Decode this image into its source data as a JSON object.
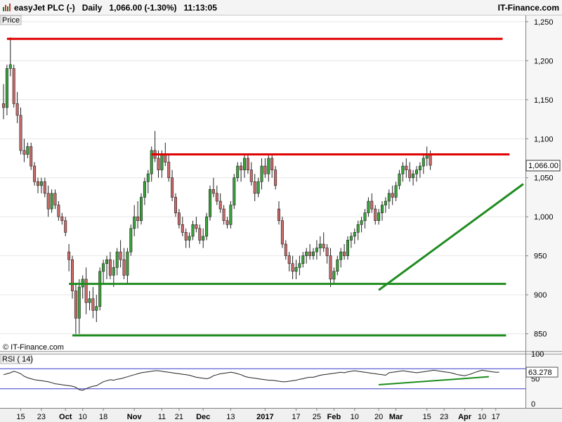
{
  "header": {
    "instrument": "easyJet PLC (-)",
    "interval": "Daily",
    "quote": "1,066.00 (-1.30%)",
    "time": "11:13:05",
    "brand": "IT-Finance.com"
  },
  "price_panel": {
    "label": "Price",
    "watermark": "© IT-Finance.com",
    "last_price_label": "1,066.00",
    "colors": {
      "up": "#3aa33a",
      "down": "#c96a6a",
      "resistance": "#e00000",
      "support": "#1e8c1e",
      "badge": "#ffffff"
    }
  },
  "rsi_panel": {
    "label": "RSI ( 14)",
    "value_label": "63.278",
    "level_labels": [
      "100",
      "50",
      "0"
    ]
  },
  "chart_data": {
    "type": "candlestick",
    "title": "easyJet PLC (-)",
    "interval": "Daily",
    "y_axis": {
      "ticks": [
        850,
        900,
        950,
        1000,
        1050,
        1100,
        1150,
        1200,
        1250
      ],
      "tick_labels": [
        "850",
        "900",
        "950",
        "1,000",
        "1,050",
        "1,100",
        "1,150",
        "1,200",
        "1,250"
      ],
      "ylim": [
        828,
        1258
      ]
    },
    "x_axis": {
      "tick_labels": [
        {
          "label": "15",
          "bar": 5
        },
        {
          "label": "23",
          "bar": 11
        },
        {
          "label": "Oct",
          "bar": 18
        },
        {
          "label": "10",
          "bar": 23
        },
        {
          "label": "18",
          "bar": 29
        },
        {
          "label": "Nov",
          "bar": 38
        },
        {
          "label": "11",
          "bar": 46
        },
        {
          "label": "21",
          "bar": 51
        },
        {
          "label": "Dec",
          "bar": 58
        },
        {
          "label": "13",
          "bar": 66
        },
        {
          "label": "2017",
          "bar": 76
        },
        {
          "label": "17",
          "bar": 85
        },
        {
          "label": "25",
          "bar": 91
        },
        {
          "label": "Feb",
          "bar": 96
        },
        {
          "label": "10",
          "bar": 102
        },
        {
          "label": "20",
          "bar": 109
        },
        {
          "label": "Mar",
          "bar": 114
        },
        {
          "label": "15",
          "bar": 123
        },
        {
          "label": "23",
          "bar": 128
        },
        {
          "label": "Apr",
          "bar": 134
        },
        {
          "label": "10",
          "bar": 139
        },
        {
          "label": "17",
          "bar": 143
        }
      ]
    },
    "ohlc": [
      [
        1145,
        1170,
        1125,
        1140
      ],
      [
        1140,
        1195,
        1130,
        1190
      ],
      [
        1190,
        1230,
        1180,
        1195
      ],
      [
        1190,
        1195,
        1140,
        1145
      ],
      [
        1145,
        1160,
        1120,
        1130
      ],
      [
        1130,
        1140,
        1080,
        1085
      ],
      [
        1085,
        1100,
        1070,
        1080
      ],
      [
        1080,
        1095,
        1075,
        1090
      ],
      [
        1090,
        1095,
        1060,
        1065
      ],
      [
        1065,
        1070,
        1040,
        1045
      ],
      [
        1045,
        1050,
        1030,
        1040
      ],
      [
        1040,
        1050,
        1030,
        1045
      ],
      [
        1045,
        1050,
        1025,
        1030
      ],
      [
        1030,
        1040,
        1000,
        1010
      ],
      [
        1010,
        1035,
        1005,
        1030
      ],
      [
        1030,
        1035,
        1010,
        1015
      ],
      [
        1015,
        1020,
        995,
        1000
      ],
      [
        1000,
        1005,
        990,
        995
      ],
      [
        995,
        1000,
        975,
        980
      ],
      [
        955,
        965,
        930,
        945
      ],
      [
        945,
        950,
        895,
        905
      ],
      [
        905,
        915,
        850,
        870
      ],
      [
        870,
        920,
        850,
        910
      ],
      [
        910,
        925,
        895,
        920
      ],
      [
        920,
        935,
        875,
        890
      ],
      [
        890,
        905,
        880,
        895
      ],
      [
        895,
        910,
        870,
        880
      ],
      [
        880,
        900,
        865,
        885
      ],
      [
        885,
        935,
        880,
        930
      ],
      [
        930,
        945,
        915,
        940
      ],
      [
        940,
        950,
        920,
        945
      ],
      [
        945,
        955,
        920,
        925
      ],
      [
        925,
        945,
        910,
        935
      ],
      [
        935,
        960,
        925,
        955
      ],
      [
        955,
        970,
        935,
        945
      ],
      [
        945,
        960,
        920,
        925
      ],
      [
        925,
        960,
        915,
        955
      ],
      [
        955,
        990,
        950,
        985
      ],
      [
        985,
        1015,
        975,
        1000
      ],
      [
        1000,
        1020,
        985,
        995
      ],
      [
        995,
        1030,
        990,
        1025
      ],
      [
        1025,
        1050,
        1015,
        1045
      ],
      [
        1045,
        1060,
        1030,
        1055
      ],
      [
        1055,
        1090,
        1045,
        1085
      ],
      [
        1085,
        1110,
        1070,
        1075
      ],
      [
        1075,
        1085,
        1050,
        1060
      ],
      [
        1060,
        1085,
        1050,
        1080
      ],
      [
        1080,
        1095,
        1065,
        1070
      ],
      [
        1070,
        1080,
        1045,
        1050
      ],
      [
        1050,
        1060,
        1020,
        1025
      ],
      [
        1025,
        1030,
        1000,
        1005
      ],
      [
        1005,
        1010,
        985,
        990
      ],
      [
        990,
        1000,
        975,
        980
      ],
      [
        980,
        985,
        960,
        970
      ],
      [
        970,
        980,
        960,
        975
      ],
      [
        975,
        995,
        970,
        990
      ],
      [
        990,
        1000,
        980,
        985
      ],
      [
        985,
        990,
        965,
        970
      ],
      [
        970,
        985,
        960,
        975
      ],
      [
        975,
        1005,
        970,
        1000
      ],
      [
        1000,
        1040,
        995,
        1035
      ],
      [
        1035,
        1050,
        1025,
        1030
      ],
      [
        1030,
        1040,
        1015,
        1020
      ],
      [
        1020,
        1030,
        1005,
        1010
      ],
      [
        1010,
        1015,
        990,
        995
      ],
      [
        995,
        1000,
        985,
        990
      ],
      [
        990,
        1020,
        985,
        1015
      ],
      [
        1015,
        1055,
        1010,
        1050
      ],
      [
        1050,
        1070,
        1045,
        1065
      ],
      [
        1065,
        1070,
        1045,
        1060
      ],
      [
        1060,
        1080,
        1050,
        1075
      ],
      [
        1075,
        1080,
        1055,
        1060
      ],
      [
        1060,
        1070,
        1040,
        1045
      ],
      [
        1045,
        1055,
        1020,
        1030
      ],
      [
        1030,
        1050,
        1025,
        1045
      ],
      [
        1045,
        1075,
        1035,
        1065
      ],
      [
        1065,
        1075,
        1050,
        1055
      ],
      [
        1055,
        1080,
        1045,
        1075
      ],
      [
        1075,
        1080,
        1050,
        1060
      ],
      [
        1060,
        1065,
        1035,
        1040
      ],
      [
        1010,
        1020,
        990,
        995
      ],
      [
        995,
        1000,
        960,
        965
      ],
      [
        965,
        970,
        945,
        950
      ],
      [
        950,
        955,
        930,
        940
      ],
      [
        940,
        950,
        920,
        930
      ],
      [
        930,
        945,
        920,
        935
      ],
      [
        935,
        950,
        925,
        940
      ],
      [
        940,
        955,
        935,
        950
      ],
      [
        950,
        960,
        940,
        955
      ],
      [
        955,
        965,
        945,
        950
      ],
      [
        950,
        960,
        945,
        955
      ],
      [
        955,
        970,
        945,
        960
      ],
      [
        960,
        975,
        950,
        965
      ],
      [
        965,
        980,
        955,
        960
      ],
      [
        960,
        965,
        940,
        950
      ],
      [
        950,
        960,
        910,
        920
      ],
      [
        920,
        935,
        915,
        930
      ],
      [
        930,
        950,
        925,
        945
      ],
      [
        945,
        960,
        935,
        955
      ],
      [
        955,
        965,
        945,
        950
      ],
      [
        950,
        975,
        945,
        970
      ],
      [
        970,
        980,
        960,
        975
      ],
      [
        975,
        985,
        965,
        980
      ],
      [
        980,
        995,
        970,
        990
      ],
      [
        990,
        1000,
        980,
        995
      ],
      [
        995,
        1010,
        985,
        1005
      ],
      [
        1005,
        1025,
        1000,
        1020
      ],
      [
        1020,
        1030,
        1005,
        1010
      ],
      [
        1010,
        1015,
        990,
        995
      ],
      [
        995,
        1010,
        990,
        1005
      ],
      [
        1005,
        1020,
        995,
        1015
      ],
      [
        1015,
        1025,
        1005,
        1020
      ],
      [
        1020,
        1035,
        1010,
        1030
      ],
      [
        1030,
        1040,
        1015,
        1025
      ],
      [
        1025,
        1045,
        1020,
        1040
      ],
      [
        1040,
        1060,
        1035,
        1055
      ],
      [
        1055,
        1070,
        1045,
        1065
      ],
      [
        1065,
        1075,
        1050,
        1060
      ],
      [
        1060,
        1070,
        1045,
        1050
      ],
      [
        1050,
        1060,
        1040,
        1055
      ],
      [
        1055,
        1065,
        1045,
        1060
      ],
      [
        1060,
        1070,
        1050,
        1065
      ],
      [
        1065,
        1080,
        1055,
        1075
      ],
      [
        1075,
        1090,
        1065,
        1080
      ],
      [
        1080,
        1085,
        1060,
        1066
      ]
    ],
    "resistance_lines": [
      {
        "value": 1228,
        "from_bar": 1,
        "to_bar": 145
      },
      {
        "value": 1080,
        "from_bar": 43,
        "to_bar": 147
      }
    ],
    "support_lines": [
      {
        "value": 914,
        "from_bar": 19,
        "to_bar": 146
      },
      {
        "value": 848,
        "from_bar": 20,
        "to_bar": 146
      }
    ],
    "trend_lines": [
      {
        "from": {
          "bar": 109,
          "value": 906
        },
        "to": {
          "bar": 151,
          "value": 1042
        }
      }
    ],
    "rsi": {
      "period": 14,
      "levels": [
        70,
        30
      ],
      "last": 63.278,
      "values": [
        58,
        60,
        62,
        65,
        63,
        60,
        55,
        52,
        50,
        48,
        47,
        46,
        45,
        44,
        42,
        40,
        39,
        38,
        37,
        36,
        35,
        33,
        28,
        27,
        30,
        33,
        35,
        36,
        40,
        44,
        46,
        48,
        47,
        49,
        50,
        52,
        54,
        56,
        58,
        60,
        62,
        63,
        64,
        65,
        66,
        66,
        65,
        64,
        63,
        62,
        61,
        60,
        59,
        58,
        57,
        55,
        53,
        52,
        51,
        50,
        52,
        56,
        58,
        60,
        61,
        62,
        63,
        62,
        60,
        58,
        55,
        53,
        52,
        51,
        50,
        49,
        48,
        47,
        47,
        46,
        45,
        44,
        44,
        45,
        46,
        47,
        49,
        50,
        52,
        53,
        53,
        55,
        57,
        58,
        59,
        60,
        61,
        62,
        63,
        62,
        64,
        65,
        66,
        65,
        64,
        63,
        62,
        61,
        60,
        59,
        58,
        57,
        62,
        63,
        64,
        65,
        66,
        65,
        64,
        63,
        62,
        63,
        64,
        65,
        66,
        67,
        66,
        65,
        64,
        63,
        62,
        60,
        58,
        57,
        56,
        58,
        60,
        63,
        65,
        67,
        66,
        65,
        64,
        63,
        63
      ],
      "trend_line": {
        "from": {
          "bar": 109,
          "value": 38
        },
        "to": {
          "bar": 141,
          "value": 54
        }
      }
    }
  }
}
